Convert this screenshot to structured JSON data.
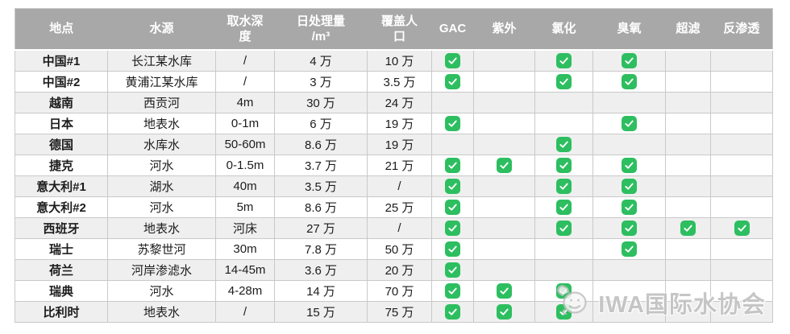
{
  "chart_data": {
    "type": "table",
    "columns": [
      {
        "key": "location",
        "label": "地点"
      },
      {
        "key": "source",
        "label": "水源"
      },
      {
        "key": "depth",
        "label": "取水深\n度"
      },
      {
        "key": "daily_volume",
        "label": "日处理量\n/m³"
      },
      {
        "key": "population",
        "label": "覆盖人\n口"
      },
      {
        "key": "gac",
        "label": "GAC"
      },
      {
        "key": "uv",
        "label": "紫外"
      },
      {
        "key": "chlorination",
        "label": "氯化"
      },
      {
        "key": "ozone",
        "label": "臭氧"
      },
      {
        "key": "ultrafiltration",
        "label": "超滤"
      },
      {
        "key": "reverse_osmosis",
        "label": "反渗透"
      }
    ],
    "rows": [
      {
        "location": "中国#1",
        "source": "长江某水库",
        "depth": "/",
        "daily_volume": "4 万",
        "population": "10 万",
        "gac": true,
        "uv": false,
        "chlorination": true,
        "ozone": true,
        "ultrafiltration": false,
        "reverse_osmosis": false
      },
      {
        "location": "中国#2",
        "source": "黄浦江某水库",
        "depth": "/",
        "daily_volume": "3 万",
        "population": "3.5 万",
        "gac": true,
        "uv": false,
        "chlorination": true,
        "ozone": true,
        "ultrafiltration": false,
        "reverse_osmosis": false
      },
      {
        "location": "越南",
        "source": "西贡河",
        "depth": "4m",
        "daily_volume": "30 万",
        "population": "24 万",
        "gac": false,
        "uv": false,
        "chlorination": false,
        "ozone": false,
        "ultrafiltration": false,
        "reverse_osmosis": false
      },
      {
        "location": "日本",
        "source": "地表水",
        "depth": "0-1m",
        "daily_volume": "6 万",
        "population": "19 万",
        "gac": true,
        "uv": false,
        "chlorination": false,
        "ozone": true,
        "ultrafiltration": false,
        "reverse_osmosis": false
      },
      {
        "location": "德国",
        "source": "水库水",
        "depth": "50-60m",
        "daily_volume": "8.6 万",
        "population": "19 万",
        "gac": false,
        "uv": false,
        "chlorination": true,
        "ozone": false,
        "ultrafiltration": false,
        "reverse_osmosis": false
      },
      {
        "location": "捷克",
        "source": "河水",
        "depth": "0-1.5m",
        "daily_volume": "3.7 万",
        "population": "21 万",
        "gac": true,
        "uv": true,
        "chlorination": true,
        "ozone": true,
        "ultrafiltration": false,
        "reverse_osmosis": false
      },
      {
        "location": "意大利#1",
        "source": "湖水",
        "depth": "40m",
        "daily_volume": "3.5 万",
        "population": "/",
        "gac": true,
        "uv": false,
        "chlorination": true,
        "ozone": true,
        "ultrafiltration": false,
        "reverse_osmosis": false
      },
      {
        "location": "意大利#2",
        "source": "河水",
        "depth": "5m",
        "daily_volume": "8.6 万",
        "population": "25 万",
        "gac": true,
        "uv": false,
        "chlorination": true,
        "ozone": true,
        "ultrafiltration": false,
        "reverse_osmosis": false
      },
      {
        "location": "西班牙",
        "source": "地表水",
        "depth": "河床",
        "daily_volume": "27 万",
        "population": "/",
        "gac": true,
        "uv": false,
        "chlorination": true,
        "ozone": true,
        "ultrafiltration": true,
        "reverse_osmosis": true
      },
      {
        "location": "瑞士",
        "source": "苏黎世河",
        "depth": "30m",
        "daily_volume": "7.8 万",
        "population": "50 万",
        "gac": true,
        "uv": false,
        "chlorination": false,
        "ozone": true,
        "ultrafiltration": false,
        "reverse_osmosis": false
      },
      {
        "location": "荷兰",
        "source": "河岸渗滤水",
        "depth": "14-45m",
        "daily_volume": "3.6 万",
        "population": "20 万",
        "gac": true,
        "uv": false,
        "chlorination": false,
        "ozone": false,
        "ultrafiltration": false,
        "reverse_osmosis": false
      },
      {
        "location": "瑞典",
        "source": "河水",
        "depth": "4-28m",
        "daily_volume": "14 万",
        "population": "70 万",
        "gac": true,
        "uv": true,
        "chlorination": true,
        "ozone": false,
        "ultrafiltration": false,
        "reverse_osmosis": false
      },
      {
        "location": "比利时",
        "source": "地表水",
        "depth": "/",
        "daily_volume": "15 万",
        "population": "75 万",
        "gac": true,
        "uv": true,
        "chlorination": true,
        "ozone": false,
        "ultrafiltration": false,
        "reverse_osmosis": false
      }
    ]
  },
  "watermark": {
    "label": "IWA国际水协会"
  },
  "colors": {
    "header_bg": "#a8a8a8",
    "header_text": "#ffffff",
    "row_alt_bg": "#efefef",
    "row_bg": "#ffffff",
    "border": "#c9c9c9",
    "body_text": "#1c1c1c",
    "check_green": "#2dbe60",
    "watermark_gray": "#c3c3c3"
  }
}
